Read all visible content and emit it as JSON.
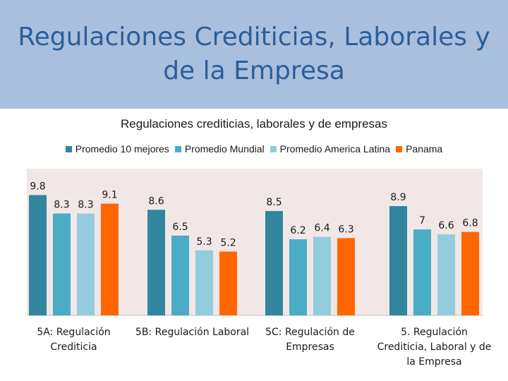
{
  "slide": {
    "title": "Regulaciones Crediticias, Laborales y de la Empresa"
  },
  "colors": {
    "banner": "#a9bfde",
    "title_text": "#2a5f9b",
    "plot_bg": "#f1e7e7"
  },
  "chart_data": {
    "type": "bar",
    "title": "Regulaciones crediticias, laborales y de empresas",
    "xlabel": "",
    "ylabel": "",
    "ylim": [
      0,
      10
    ],
    "grid": false,
    "legend_position": "top",
    "categories": [
      [
        "5A: Regulación",
        "Crediticia"
      ],
      [
        "5B: Regulación Laboral"
      ],
      [
        "5C: Regulación de",
        "Empresas"
      ],
      [
        "5. Regulación",
        "Crediticia, Laboral y de",
        "la Empresa"
      ]
    ],
    "series": [
      {
        "name": "Promedio 10 mejores",
        "color": "#31859c",
        "values": [
          9.8,
          8.6,
          8.5,
          8.9
        ]
      },
      {
        "name": "Promedio Mundial",
        "color": "#4bacc6",
        "values": [
          8.3,
          6.5,
          6.2,
          7
        ]
      },
      {
        "name": "Promedio America Latina",
        "color": "#93cddd",
        "values": [
          8.3,
          5.3,
          6.4,
          6.6
        ]
      },
      {
        "name": "Panama",
        "color": "#ff6600",
        "values": [
          9.1,
          5.2,
          6.3,
          6.8
        ]
      }
    ]
  }
}
